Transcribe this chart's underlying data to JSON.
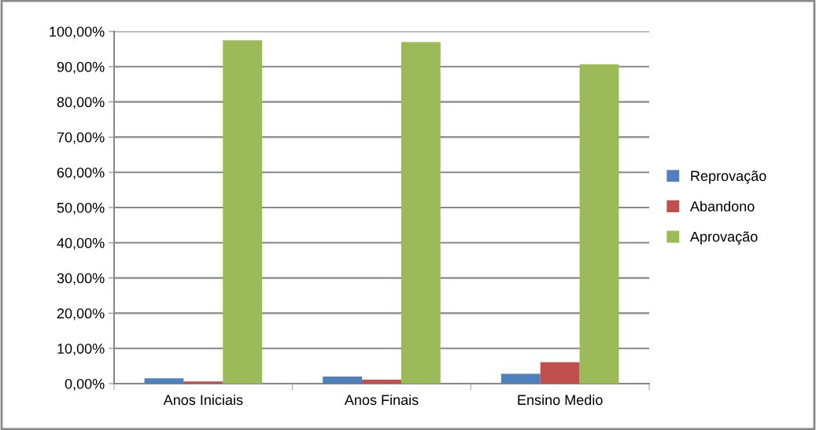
{
  "chart_data": {
    "type": "bar",
    "categories": [
      "Anos Iniciais",
      "Anos Finais",
      "Ensino Medio"
    ],
    "series": [
      {
        "name": "Reprovação",
        "color": "#4f81bd",
        "values": [
          1.5,
          2.0,
          2.8
        ]
      },
      {
        "name": "Abandono",
        "color": "#c0504d",
        "values": [
          0.6,
          1.1,
          6.1
        ]
      },
      {
        "name": "Aprovação",
        "color": "#9bbb59",
        "values": [
          97.5,
          97.0,
          90.7
        ]
      }
    ],
    "ylim": [
      0,
      100
    ],
    "yticks": [
      {
        "value": 0,
        "label": "0,00%"
      },
      {
        "value": 10,
        "label": "10,00%"
      },
      {
        "value": 20,
        "label": "20,00%"
      },
      {
        "value": 30,
        "label": "30,00%"
      },
      {
        "value": 40,
        "label": "40,00%"
      },
      {
        "value": 50,
        "label": "50,00%"
      },
      {
        "value": 60,
        "label": "60,00%"
      },
      {
        "value": 70,
        "label": "70,00%"
      },
      {
        "value": 80,
        "label": "80,00%"
      },
      {
        "value": 90,
        "label": "90,00%"
      },
      {
        "value": 100,
        "label": "100,00%"
      }
    ],
    "grid": "y",
    "legend": "right"
  }
}
